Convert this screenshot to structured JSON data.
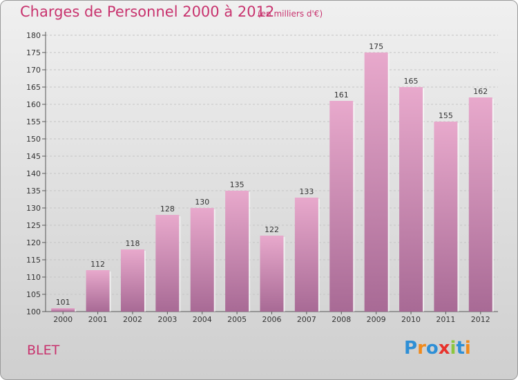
{
  "title": "Charges de Personnel 2000 à 2012",
  "subtitle": "(en milliers d'€)",
  "commune": "BLET",
  "logo": {
    "letters": [
      "P",
      "r",
      "o",
      "x",
      "i",
      "t",
      "i"
    ],
    "colors": [
      "#2e8fd6",
      "#f08a1c",
      "#2e8fd6",
      "#e8322c",
      "#8cc63f",
      "#2e8fd6",
      "#f08a1c"
    ]
  },
  "colors": {
    "accent": "#c8336e",
    "bar_top": "#e8a9cc",
    "bar_bottom": "#a86a95"
  },
  "chart_data": {
    "type": "bar",
    "categories": [
      "2000",
      "2001",
      "2002",
      "2003",
      "2004",
      "2005",
      "2006",
      "2007",
      "2008",
      "2009",
      "2010",
      "2011",
      "2012"
    ],
    "values": [
      101,
      112,
      118,
      128,
      130,
      135,
      122,
      133,
      161,
      175,
      165,
      155,
      162
    ],
    "ylim": [
      100,
      180
    ],
    "yticks": [
      100,
      105,
      110,
      115,
      120,
      125,
      130,
      135,
      140,
      145,
      150,
      155,
      160,
      165,
      170,
      175,
      180
    ],
    "grid": true
  }
}
